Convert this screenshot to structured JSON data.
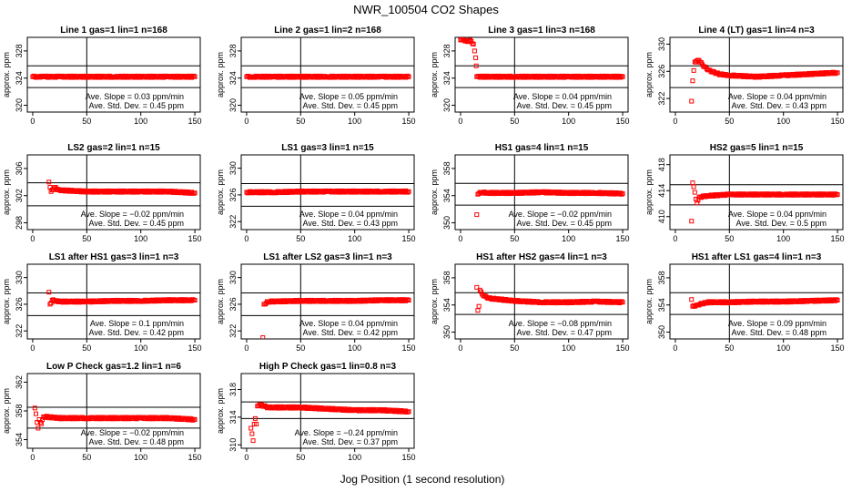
{
  "chart_data": {
    "title": "NWR_100504  CO2 Shapes",
    "xlabel": "Jog Position (1 second resolution)",
    "ylabel": "approx. ppm",
    "type": "scatter",
    "marker_color": "#ff0000",
    "slope_label": "Ave. Slope =",
    "slope_unit": "ppm/min",
    "sd_label": "Ave. Std. Dev. =",
    "sd_unit": "ppm",
    "panels": [
      {
        "title": "Line 1 gas=1 lin=1 n=168",
        "xlim": [
          -5,
          155
        ],
        "ylim": [
          319,
          330
        ],
        "yticks": [
          320,
          324,
          328
        ],
        "xticks": [
          0,
          50,
          100,
          150
        ],
        "hlines": [
          325.8,
          322.6
        ],
        "vline": 50,
        "slope": "0.03",
        "sd": "0.45",
        "points": [
          [
            0,
            324.2
          ],
          [
            5,
            324.2
          ],
          [
            10,
            324.2
          ],
          [
            25,
            324.2
          ],
          [
            50,
            324.2
          ],
          [
            75,
            324.2
          ],
          [
            100,
            324.2
          ],
          [
            125,
            324.2
          ],
          [
            150,
            324.2
          ]
        ]
      },
      {
        "title": "Line 2 gas=1 lin=2 n=168",
        "xlim": [
          -5,
          155
        ],
        "ylim": [
          319,
          330
        ],
        "yticks": [
          320,
          324,
          328
        ],
        "xticks": [
          0,
          50,
          100,
          150
        ],
        "hlines": [
          325.8,
          322.6
        ],
        "vline": 50,
        "slope": "0.05",
        "sd": "0.45",
        "points": [
          [
            0,
            324.2
          ],
          [
            5,
            324.2
          ],
          [
            25,
            324.2
          ],
          [
            50,
            324.2
          ],
          [
            75,
            324.2
          ],
          [
            100,
            324.2
          ],
          [
            125,
            324.2
          ],
          [
            150,
            324.2
          ]
        ]
      },
      {
        "title": "Line 3 gas=1 lin=3 n=168",
        "xlim": [
          -5,
          155
        ],
        "ylim": [
          319,
          330
        ],
        "yticks": [
          320,
          324,
          328
        ],
        "xticks": [
          0,
          50,
          100,
          150
        ],
        "hlines": [
          325.8,
          322.6
        ],
        "vline": 50,
        "slope": "0.04",
        "sd": "0.45",
        "points": [
          [
            0,
            329.6
          ],
          [
            3,
            329.6
          ],
          [
            6,
            329.4
          ],
          [
            9,
            329.6
          ],
          [
            12,
            329.0
          ],
          [
            13,
            328.0
          ],
          [
            14,
            327.0
          ],
          [
            14.5,
            325.8
          ],
          [
            15,
            324.2
          ],
          [
            25,
            324.2
          ],
          [
            50,
            324.2
          ],
          [
            75,
            324.2
          ],
          [
            100,
            324.2
          ],
          [
            125,
            324.2
          ],
          [
            150,
            324.2
          ]
        ]
      },
      {
        "title": "Line 4 (LT) gas=1 lin=4 n=3",
        "xlim": [
          -5,
          155
        ],
        "ylim": [
          320,
          331
        ],
        "yticks": [
          322,
          326,
          330
        ],
        "xticks": [
          0,
          50,
          100,
          150
        ],
        "hlines": [
          326.8,
          323.6
        ],
        "vline": 50,
        "slope": "0.04",
        "sd": "0.43",
        "points": [
          [
            15,
            321.6
          ],
          [
            16,
            324.6
          ],
          [
            18,
            327.4
          ],
          [
            22,
            327.6
          ],
          [
            25,
            327.0
          ],
          [
            30,
            326.2
          ],
          [
            40,
            325.6
          ],
          [
            50,
            325.4
          ],
          [
            75,
            325.2
          ],
          [
            100,
            325.4
          ],
          [
            125,
            325.6
          ],
          [
            150,
            325.8
          ]
        ]
      },
      {
        "title": "LS2 gas=2 lin=1 n=15",
        "xlim": [
          -5,
          155
        ],
        "ylim": [
          297,
          308
        ],
        "yticks": [
          298,
          302,
          306
        ],
        "xticks": [
          0,
          50,
          100,
          150
        ],
        "hlines": [
          303.9,
          300.5
        ],
        "vline": 50,
        "slope": "−0.02",
        "sd": "0.45",
        "points": [
          [
            15,
            304.0
          ],
          [
            17,
            302.6
          ],
          [
            20,
            303.2
          ],
          [
            25,
            302.8
          ],
          [
            50,
            302.6
          ],
          [
            75,
            302.6
          ],
          [
            100,
            302.6
          ],
          [
            125,
            302.6
          ],
          [
            150,
            302.4
          ]
        ]
      },
      {
        "title": "LS1 gas=3 lin=1 n=15",
        "xlim": [
          -5,
          155
        ],
        "ylim": [
          320.8,
          332
        ],
        "yticks": [
          322,
          326,
          330
        ],
        "xticks": [
          0,
          50,
          100,
          150
        ],
        "hlines": [
          327.7,
          324.3
        ],
        "vline": 50,
        "slope": "0.04",
        "sd": "0.43",
        "points": [
          [
            0,
            326.4
          ],
          [
            25,
            326.4
          ],
          [
            50,
            326.5
          ],
          [
            75,
            326.5
          ],
          [
            100,
            326.5
          ],
          [
            125,
            326.5
          ],
          [
            150,
            326.5
          ]
        ]
      },
      {
        "title": "HS1 gas=4 lin=1 n=15",
        "xlim": [
          -5,
          155
        ],
        "ylim": [
          349,
          360
        ],
        "yticks": [
          350,
          354,
          358
        ],
        "xticks": [
          0,
          50,
          100,
          150
        ],
        "hlines": [
          355.8,
          352.6
        ],
        "vline": 50,
        "slope": "−0.02",
        "sd": "0.45",
        "points": [
          [
            15,
            351.2
          ],
          [
            16,
            354.2
          ],
          [
            18,
            354.5
          ],
          [
            25,
            354.4
          ],
          [
            50,
            354.4
          ],
          [
            75,
            354.5
          ],
          [
            100,
            354.4
          ],
          [
            125,
            354.4
          ],
          [
            150,
            354.3
          ]
        ]
      },
      {
        "title": "HS2 gas=5 lin=1 n=15",
        "xlim": [
          -5,
          155
        ],
        "ylim": [
          408,
          419.5
        ],
        "yticks": [
          410,
          414,
          418
        ],
        "xticks": [
          0,
          50,
          100,
          150
        ],
        "hlines": [
          414.9,
          411.8
        ],
        "vline": 50,
        "slope": "0.04",
        "sd": "0.5",
        "points": [
          [
            15,
            409.3
          ],
          [
            16,
            415.2
          ],
          [
            17,
            414.6
          ],
          [
            19,
            412.7
          ],
          [
            20,
            412.1
          ],
          [
            22,
            413.0
          ],
          [
            30,
            413.2
          ],
          [
            50,
            413.4
          ],
          [
            75,
            413.4
          ],
          [
            100,
            413.4
          ],
          [
            125,
            413.4
          ],
          [
            150,
            413.4
          ]
        ]
      },
      {
        "title": "LS1 after HS1 gas=3 lin=1 n=3",
        "xlim": [
          -5,
          155
        ],
        "ylim": [
          320.8,
          332
        ],
        "yticks": [
          322,
          326,
          330
        ],
        "xticks": [
          0,
          50,
          100,
          150
        ],
        "hlines": [
          327.7,
          324.3
        ],
        "vline": 50,
        "slope": "0.1",
        "sd": "0.42",
        "points": [
          [
            15,
            327.8
          ],
          [
            16,
            326.0
          ],
          [
            18,
            326.6
          ],
          [
            25,
            326.4
          ],
          [
            50,
            326.4
          ],
          [
            75,
            326.5
          ],
          [
            100,
            326.5
          ],
          [
            125,
            326.6
          ],
          [
            150,
            326.6
          ]
        ]
      },
      {
        "title": "LS1 after LS2 gas=3 lin=1 n=3",
        "xlim": [
          -5,
          155
        ],
        "ylim": [
          320.8,
          332
        ],
        "yticks": [
          322,
          326,
          330
        ],
        "xticks": [
          0,
          50,
          100,
          150
        ],
        "hlines": [
          327.7,
          324.3
        ],
        "vline": 50,
        "slope": "0.04",
        "sd": "0.42",
        "points": [
          [
            15,
            321.0
          ],
          [
            16,
            326.0
          ],
          [
            20,
            326.4
          ],
          [
            50,
            326.5
          ],
          [
            75,
            326.5
          ],
          [
            100,
            326.5
          ],
          [
            125,
            326.6
          ],
          [
            150,
            326.6
          ]
        ]
      },
      {
        "title": "HS1 after HS2 gas=4 lin=1 n=3",
        "xlim": [
          -5,
          155
        ],
        "ylim": [
          349,
          360
        ],
        "yticks": [
          350,
          354,
          358
        ],
        "xticks": [
          0,
          50,
          100,
          150
        ],
        "hlines": [
          355.8,
          352.6
        ],
        "vline": 50,
        "slope": "−0.08",
        "sd": "0.47",
        "points": [
          [
            15,
            356.6
          ],
          [
            16,
            353.2
          ],
          [
            17,
            353.8
          ],
          [
            18,
            356.2
          ],
          [
            20,
            355.6
          ],
          [
            25,
            355.0
          ],
          [
            50,
            354.6
          ],
          [
            75,
            354.4
          ],
          [
            100,
            354.4
          ],
          [
            125,
            354.5
          ],
          [
            150,
            354.4
          ]
        ]
      },
      {
        "title": "HS1 after LS1 gas=4 lin=1 n=3",
        "xlim": [
          -5,
          155
        ],
        "ylim": [
          349,
          360
        ],
        "yticks": [
          350,
          354,
          358
        ],
        "xticks": [
          0,
          50,
          100,
          150
        ],
        "hlines": [
          355.8,
          352.6
        ],
        "vline": 50,
        "slope": "0.09",
        "sd": "0.48",
        "points": [
          [
            15,
            354.8
          ],
          [
            16,
            353.8
          ],
          [
            20,
            354.0
          ],
          [
            30,
            354.4
          ],
          [
            50,
            354.4
          ],
          [
            75,
            354.5
          ],
          [
            100,
            354.5
          ],
          [
            125,
            354.6
          ],
          [
            150,
            354.7
          ]
        ]
      },
      {
        "title": "Low P Check gas=1.2 lin=1 n=6",
        "xlim": [
          -5,
          155
        ],
        "ylim": [
          352.8,
          363.2
        ],
        "yticks": [
          354,
          358,
          362
        ],
        "xticks": [
          0,
          50,
          100,
          150
        ],
        "hlines": [
          358.5,
          355.6
        ],
        "vline": 50,
        "slope": "−0.02",
        "sd": "0.48",
        "points": [
          [
            2,
            358.4
          ],
          [
            3,
            357.6
          ],
          [
            4,
            356.4
          ],
          [
            5,
            355.6
          ],
          [
            6,
            356.8
          ],
          [
            8,
            356.2
          ],
          [
            10,
            357.2
          ],
          [
            25,
            357.0
          ],
          [
            50,
            357.0
          ],
          [
            75,
            357.0
          ],
          [
            100,
            357.0
          ],
          [
            125,
            357.0
          ],
          [
            150,
            356.8
          ]
        ]
      },
      {
        "title": "High P Check gas=1 lin=0.8 n=3",
        "xlim": [
          -5,
          155
        ],
        "ylim": [
          309.5,
          320.3
        ],
        "yticks": [
          310,
          314,
          318
        ],
        "xticks": [
          0,
          50,
          100,
          150
        ],
        "hlines": [
          316.2,
          313.8
        ],
        "vline": 50,
        "slope": "−0.24",
        "sd": "0.37",
        "points": [
          [
            4,
            312.4
          ],
          [
            5,
            311.6
          ],
          [
            6,
            310.6
          ],
          [
            7,
            313.0
          ],
          [
            8,
            313.8
          ],
          [
            9,
            313.0
          ],
          [
            10,
            315.6
          ],
          [
            12,
            315.8
          ],
          [
            20,
            315.4
          ],
          [
            50,
            315.4
          ],
          [
            75,
            315.2
          ],
          [
            100,
            315.0
          ],
          [
            125,
            315.0
          ],
          [
            150,
            314.8
          ]
        ]
      }
    ]
  }
}
